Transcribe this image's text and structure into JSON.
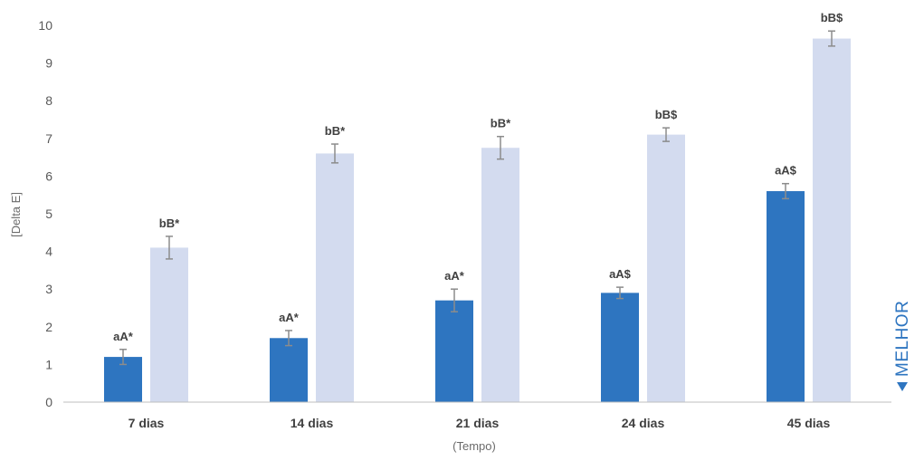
{
  "chart_data": {
    "type": "bar",
    "xlabel": "(Tempo)",
    "ylabel": "[Delta E]",
    "ylim": [
      0,
      10
    ],
    "yticks": [
      0,
      1,
      2,
      3,
      4,
      5,
      6,
      7,
      8,
      9,
      10
    ],
    "grid": false,
    "categories": [
      "7 dias",
      "14 dias",
      "21 dias",
      "24 dias",
      "45 dias"
    ],
    "series": [
      {
        "color": "#2e75c0",
        "values": [
          1.2,
          1.7,
          2.7,
          2.9,
          5.6
        ],
        "errors": [
          0.2,
          0.2,
          0.3,
          0.15,
          0.2
        ],
        "labels": [
          "aA*",
          "aA*",
          "aA*",
          "aA$",
          "aA$"
        ]
      },
      {
        "color": "#d3dbef",
        "values": [
          4.1,
          6.6,
          6.75,
          7.1,
          9.65
        ],
        "errors": [
          0.3,
          0.25,
          0.3,
          0.18,
          0.2
        ],
        "labels": [
          "bB*",
          "bB*",
          "bB*",
          "bB$",
          "bB$"
        ]
      }
    ],
    "annotation": {
      "text": "MELHOR",
      "icon": "triangle-left-icon",
      "color": "#2e75c0"
    },
    "error_bar_color": "#8c8c8c",
    "axis_color": "#bfbfbf"
  }
}
